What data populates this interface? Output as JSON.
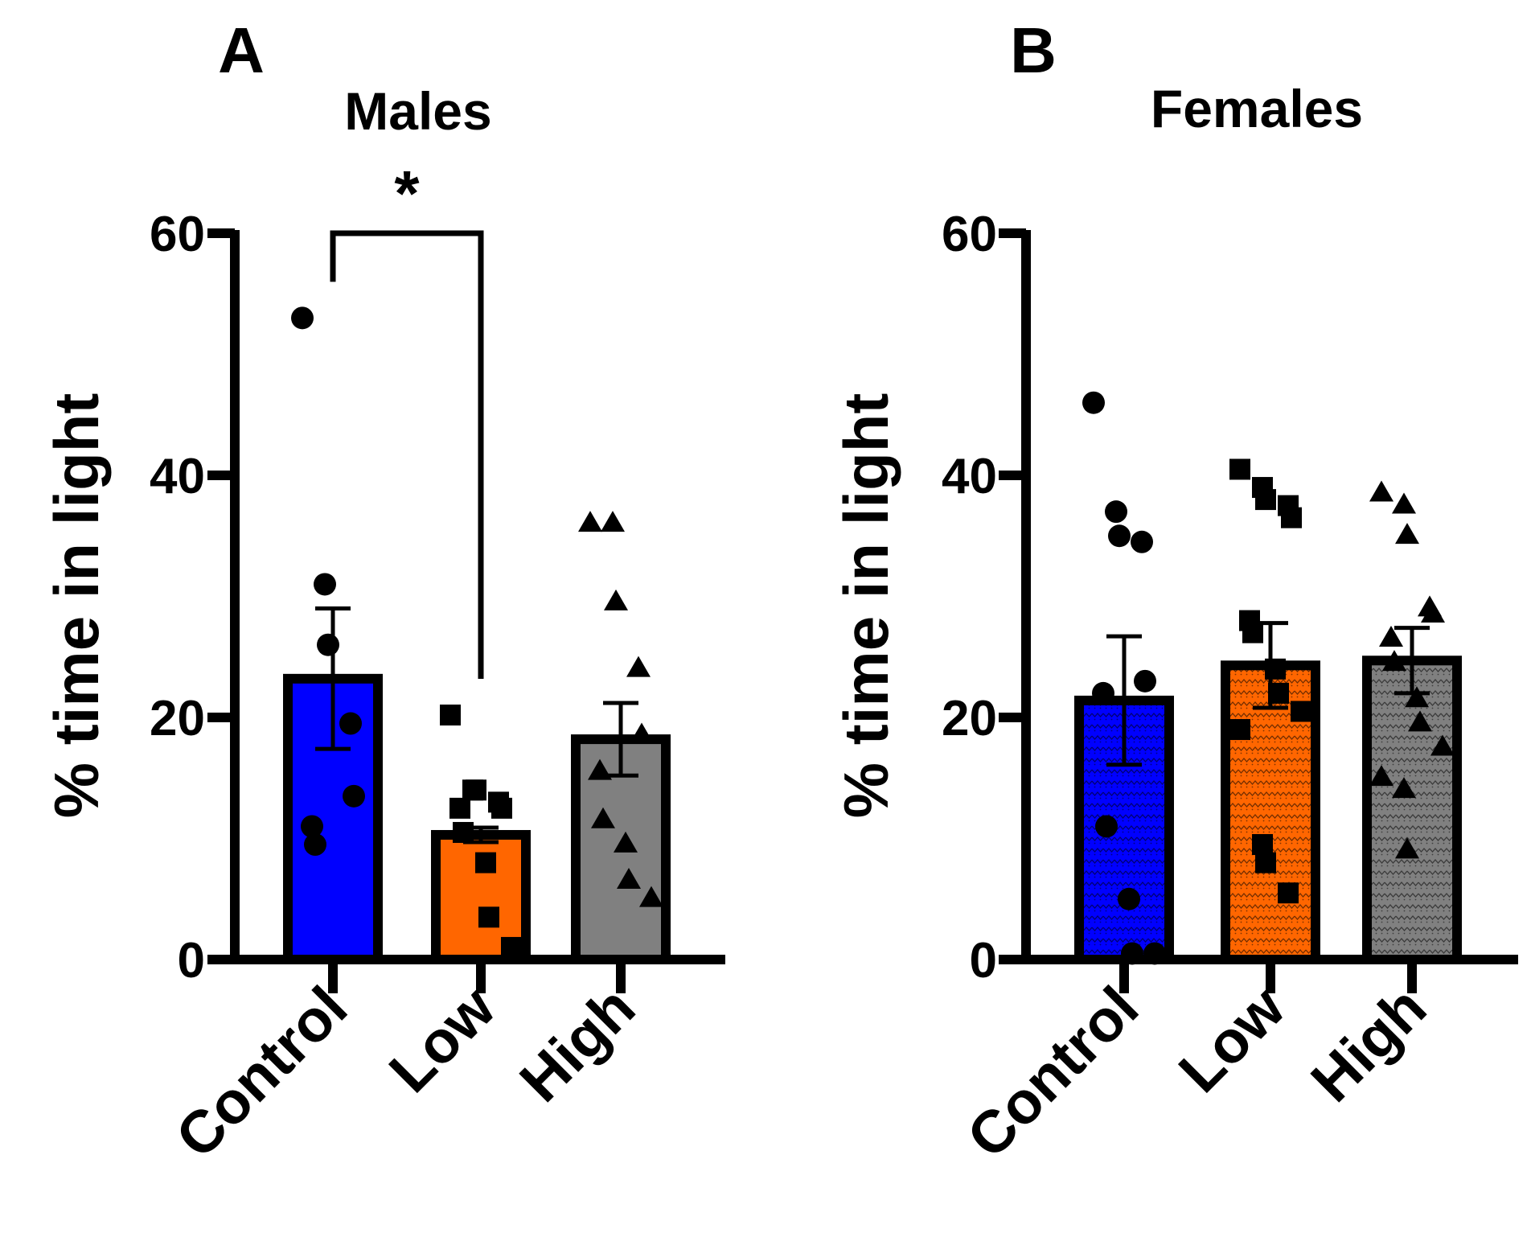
{
  "colors": {
    "control": "#0000ff",
    "low": "#ff6600",
    "high": "#808080",
    "axis": "#000000"
  },
  "chart_data": [
    {
      "panel_label": "A",
      "title": "Males",
      "type": "bar",
      "ylabel": "% time in light",
      "ylim": [
        0,
        60
      ],
      "yticks": [
        0,
        20,
        40,
        60
      ],
      "ytick_labels": [
        "0",
        "20",
        "40",
        "60"
      ],
      "categories": [
        "Control",
        "Low",
        "High"
      ],
      "patterned": false,
      "series": [
        {
          "name": "Control",
          "marker": "circle",
          "mean": 23.2,
          "sem": 5.8,
          "points": [
            53,
            31,
            26,
            19.5,
            13.5,
            11,
            9.5
          ]
        },
        {
          "name": "Low",
          "marker": "square",
          "mean": 10.3,
          "sem": 0.6,
          "points": [
            20.2,
            14,
            14,
            13,
            12.5,
            12.5,
            10.5,
            8,
            3.5,
            1
          ]
        },
        {
          "name": "High",
          "marker": "triangle",
          "mean": 18.2,
          "sem": 3.0,
          "points": [
            36,
            36,
            29.5,
            24,
            18.5,
            15.5,
            11.5,
            9.5,
            6.5,
            5
          ]
        }
      ],
      "annotations": [
        {
          "text": "*",
          "from": "Control",
          "to": "Low",
          "y": 60
        }
      ]
    },
    {
      "panel_label": "B",
      "title": "Females",
      "type": "bar",
      "ylabel": "% time in light",
      "ylim": [
        0,
        60
      ],
      "yticks": [
        0,
        20,
        40,
        60
      ],
      "ytick_labels": [
        "0",
        "20",
        "40",
        "60"
      ],
      "categories": [
        "Control",
        "Low",
        "High"
      ],
      "patterned": true,
      "series": [
        {
          "name": "Control",
          "marker": "circle",
          "mean": 21.4,
          "sem": 5.3,
          "points": [
            46,
            37,
            35,
            34.5,
            23,
            22,
            11,
            5,
            0.5,
            0.5
          ]
        },
        {
          "name": "Low",
          "marker": "square",
          "mean": 24.3,
          "sem": 3.5,
          "points": [
            40.5,
            39,
            38,
            37.5,
            36.5,
            28,
            27,
            24,
            22,
            20.5,
            19,
            9.5,
            8,
            5.5
          ]
        },
        {
          "name": "High",
          "marker": "triangle",
          "mean": 24.7,
          "sem": 2.7,
          "points": [
            38.5,
            37.5,
            35,
            29,
            28.5,
            26.5,
            24.5,
            21.5,
            19.5,
            17.5,
            15,
            14,
            9
          ]
        }
      ],
      "annotations": []
    }
  ]
}
